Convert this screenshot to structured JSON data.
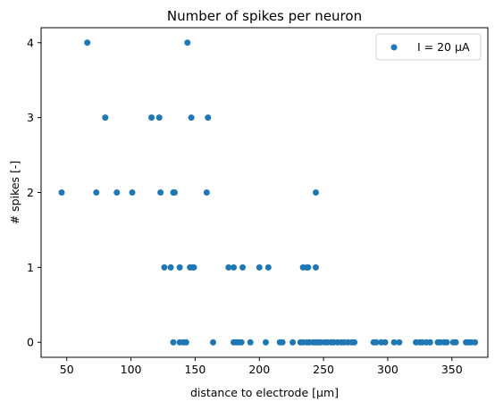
{
  "chart_data": {
    "type": "scatter",
    "title": "Number of spikes per neuron",
    "xlabel": "distance to electrode [μm]",
    "ylabel": "# spikes [-]",
    "xlim": [
      30,
      378
    ],
    "ylim": [
      -0.2,
      4.2
    ],
    "xticks": [
      50,
      100,
      150,
      200,
      250,
      300,
      350
    ],
    "yticks": [
      0,
      1,
      2,
      3,
      4
    ],
    "legend_position": "top-right",
    "grid": false,
    "series": [
      {
        "name": "I = 20 μA",
        "color": "#1f77b4",
        "x": [
          66,
          144,
          80,
          116,
          122,
          147,
          160,
          46,
          73,
          89,
          101,
          123,
          133,
          134,
          159,
          244,
          126,
          131,
          138,
          146,
          148,
          149,
          176,
          180,
          187,
          200,
          207,
          234,
          237,
          238,
          244,
          133,
          138,
          141,
          143,
          164,
          180,
          182,
          184,
          186,
          193,
          205,
          216,
          218,
          226,
          232,
          234,
          237,
          239,
          242,
          244,
          246,
          248,
          251,
          253,
          256,
          258,
          261,
          264,
          266,
          269,
          272,
          274,
          289,
          291,
          295,
          298,
          305,
          309,
          322,
          325,
          327,
          330,
          333,
          339,
          341,
          344,
          346,
          351,
          353,
          361,
          363,
          365,
          368
        ],
        "y": [
          4,
          4,
          3,
          3,
          3,
          3,
          3,
          2,
          2,
          2,
          2,
          2,
          2,
          2,
          2,
          2,
          1,
          1,
          1,
          1,
          1,
          1,
          1,
          1,
          1,
          1,
          1,
          1,
          1,
          1,
          1,
          0,
          0,
          0,
          0,
          0,
          0,
          0,
          0,
          0,
          0,
          0,
          0,
          0,
          0,
          0,
          0,
          0,
          0,
          0,
          0,
          0,
          0,
          0,
          0,
          0,
          0,
          0,
          0,
          0,
          0,
          0,
          0,
          0,
          0,
          0,
          0,
          0,
          0,
          0,
          0,
          0,
          0,
          0,
          0,
          0,
          0,
          0,
          0,
          0,
          0,
          0,
          0,
          0
        ]
      }
    ]
  }
}
